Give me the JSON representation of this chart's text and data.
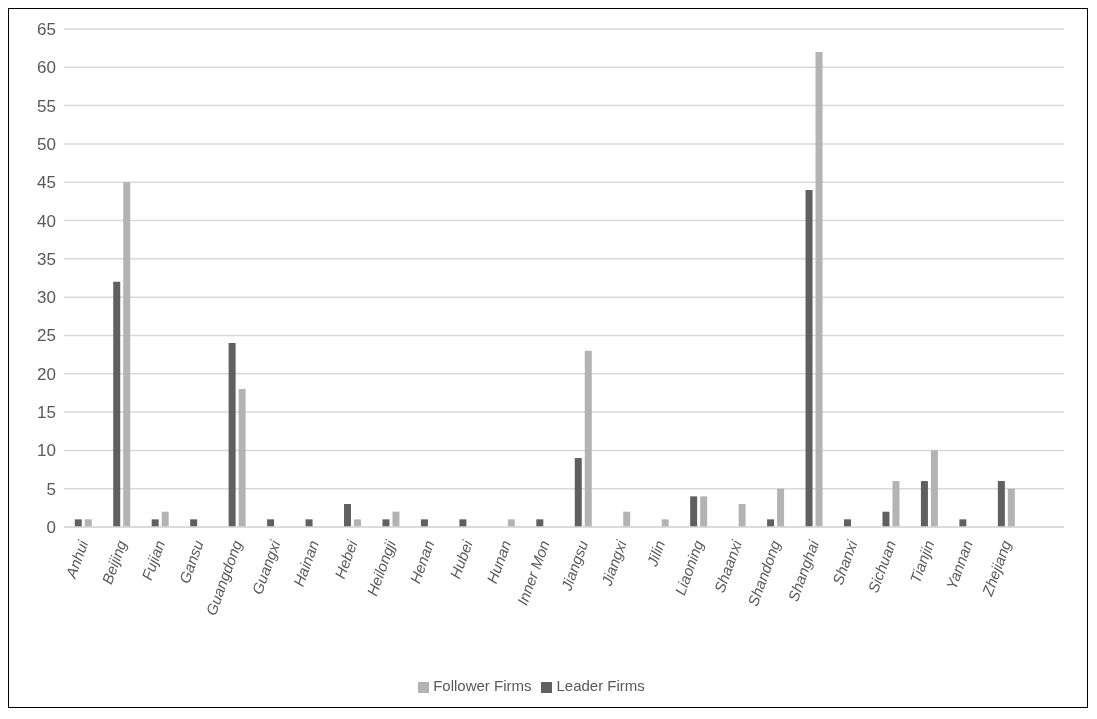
{
  "chart_data": {
    "type": "bar",
    "categories": [
      "Anhui",
      "Beijing",
      "Fujian",
      "Gansu",
      "Guangdong",
      "Guangxi",
      "Hainan",
      "Hebei",
      "Heilongji",
      "Henan",
      "Hubei",
      "Hunan",
      "Inner Mon",
      "Jiangsu",
      "Jiangxi",
      "Jilin",
      "Liaoning",
      "Shaanxi",
      "Shandong",
      "Shanghai",
      "Shanxi",
      "Sichuan",
      "Tianjin",
      "Yannan",
      "Zhejiang",
      null
    ],
    "series": [
      {
        "name": "Leader Firms",
        "color": "#606060",
        "values": [
          1,
          32,
          1,
          1,
          24,
          1,
          1,
          3,
          1,
          1,
          1,
          null,
          1,
          9,
          null,
          null,
          4,
          null,
          1,
          44,
          1,
          2,
          6,
          1,
          6,
          null
        ]
      },
      {
        "name": "Follower Firms",
        "color": "#b3b3b3",
        "values": [
          1,
          45,
          2,
          null,
          18,
          null,
          null,
          1,
          2,
          null,
          null,
          1,
          null,
          23,
          2,
          1,
          4,
          3,
          5,
          62,
          null,
          6,
          10,
          null,
          5,
          null
        ]
      }
    ],
    "ylim": [
      0,
      65
    ],
    "yticks": [
      0,
      5,
      10,
      15,
      20,
      25,
      30,
      35,
      40,
      45,
      50,
      55,
      60,
      65
    ],
    "grid": "y",
    "legend": "bottom"
  }
}
